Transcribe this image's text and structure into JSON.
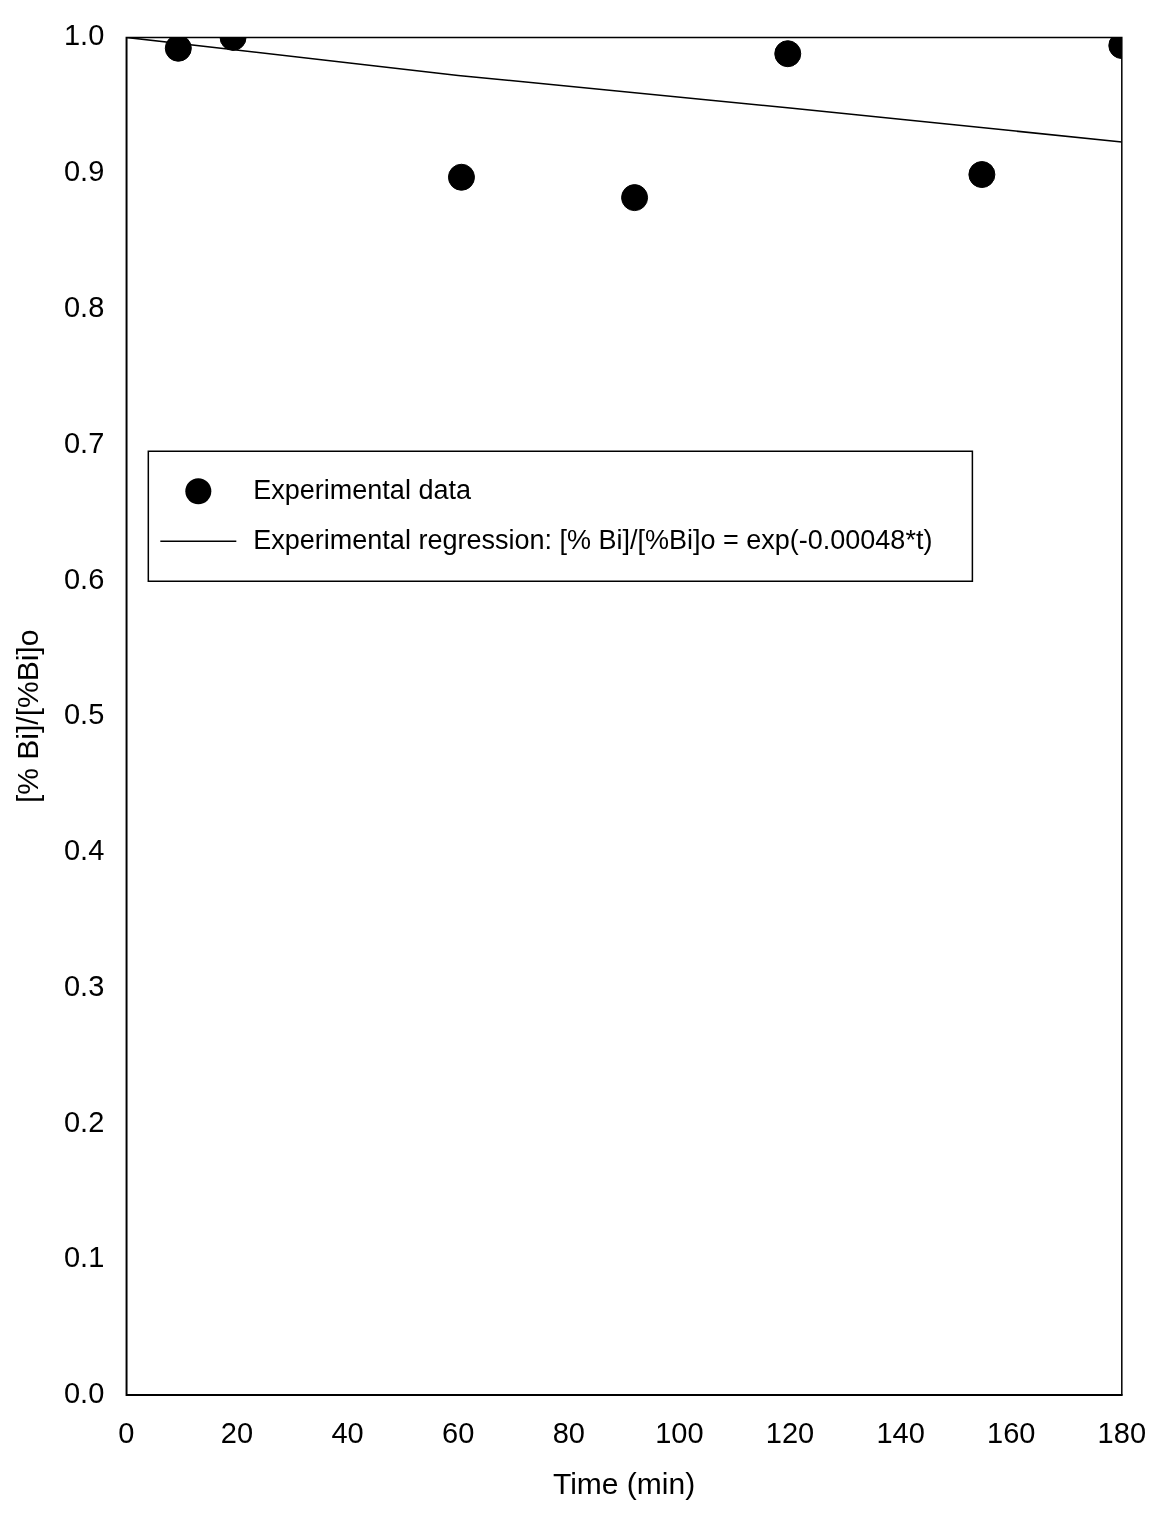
{
  "chart_data": {
    "type": "scatter",
    "xlabel": "Time (min)",
    "ylabel": "[% Bi]/[%Bi]o",
    "xlim": [
      0,
      180
    ],
    "xticks": [
      0,
      20,
      40,
      60,
      80,
      100,
      120,
      140,
      160,
      180
    ],
    "ylim": [
      0,
      1
    ],
    "yticks": [
      {
        "value": 0,
        "label": "0.0"
      },
      0.1,
      0.2,
      0.3,
      0.4,
      0.5,
      0.6,
      0.7,
      0.8,
      0.9,
      {
        "value": 1,
        "label": "1.0"
      }
    ],
    "grid": false,
    "legend": "center left",
    "series": [
      {
        "name": "Experimental data",
        "color": "#000000",
        "marker": "circle",
        "x": [
          9.4,
          19.3,
          60.6,
          91.9,
          119.6,
          154.7,
          180
        ],
        "values": [
          0.992,
          1.0,
          0.897,
          0.882,
          0.988,
          0.899,
          0.994
        ]
      },
      {
        "name": "Experimental regression: [% Bi]/[%Bi]o = exp(-0.00048*t)",
        "type": "line",
        "marker": "none",
        "color": "#000000",
        "x": [
          0,
          60,
          120,
          180
        ],
        "values": [
          1.0,
          0.972,
          0.948,
          0.923
        ]
      }
    ]
  }
}
